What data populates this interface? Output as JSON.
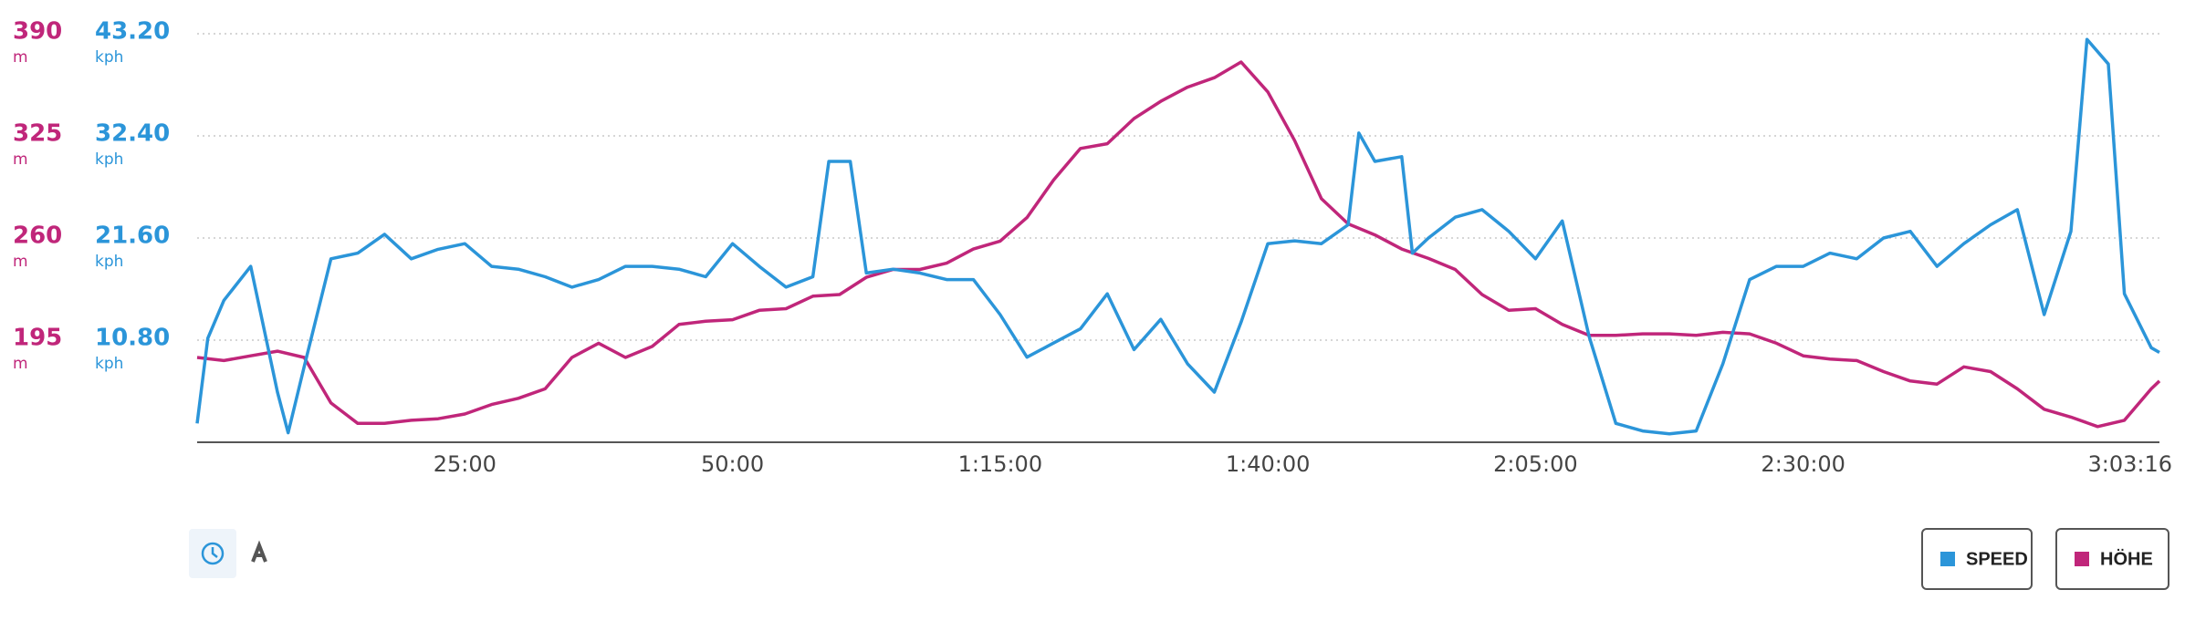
{
  "chart_data": {
    "type": "line",
    "xlim": [
      0,
      183.27
    ],
    "xticks": [
      {
        "value": 25,
        "label": "25:00"
      },
      {
        "value": 50,
        "label": "50:00"
      },
      {
        "value": 75,
        "label": "1:15:00"
      },
      {
        "value": 100,
        "label": "1:40:00"
      },
      {
        "value": 125,
        "label": "2:05:00"
      },
      {
        "value": 150,
        "label": "2:30:00"
      },
      {
        "value": 183.27,
        "label": "3:03:16"
      }
    ],
    "ylim": [
      130,
      390
    ],
    "yticks": [
      195,
      260,
      325,
      390
    ],
    "yunit": "m",
    "y2lim": [
      0,
      43.2
    ],
    "y2ticks": [
      {
        "value": 10.8,
        "label": "10.80"
      },
      {
        "value": 21.6,
        "label": "21.60"
      },
      {
        "value": 32.4,
        "label": "32.40"
      },
      {
        "value": 43.2,
        "label": "43.20"
      }
    ],
    "y2unit": "kph",
    "grid": true,
    "series": [
      {
        "name": "SPEED",
        "color": "#2b95d9",
        "axis": "y2",
        "x": [
          0,
          1,
          2.5,
          5,
          7.5,
          8.5,
          10,
          12.5,
          15,
          17.5,
          20,
          22.5,
          25,
          27.5,
          30,
          32.5,
          35,
          37.5,
          40,
          42.5,
          45,
          47.5,
          50,
          52.5,
          55,
          57.5,
          59,
          61,
          62.5,
          65,
          67.5,
          70,
          72.5,
          75,
          77.5,
          80,
          82.5,
          85,
          87.5,
          90,
          92.5,
          95,
          97.5,
          100,
          102.5,
          105,
          107.5,
          108.5,
          110,
          112.5,
          113.5,
          115,
          117.5,
          120,
          122.5,
          125,
          127.5,
          130,
          132.5,
          135,
          137.5,
          140,
          142.5,
          145,
          147.5,
          150,
          152.5,
          155,
          157.5,
          160,
          162.5,
          165,
          167.5,
          170,
          172.5,
          175,
          176.5,
          178.5,
          180,
          182.5,
          183.27
        ],
        "values": [
          2,
          11,
          15,
          18.6,
          5.3,
          1,
          8,
          19.4,
          20,
          22,
          19.4,
          20.4,
          21,
          18.6,
          18.3,
          17.5,
          16.4,
          17.2,
          18.6,
          18.6,
          18.3,
          17.5,
          21,
          18.6,
          16.4,
          17.5,
          29.7,
          29.7,
          17.9,
          18.3,
          17.9,
          17.2,
          17.2,
          13.5,
          9,
          10.5,
          12,
          15.7,
          9.8,
          13,
          8.3,
          5.3,
          12.7,
          21,
          21.3,
          21,
          23,
          32.7,
          29.7,
          30.2,
          20,
          21.6,
          23.8,
          24.6,
          22.3,
          19.4,
          23.4,
          11.2,
          2,
          1.2,
          0.9,
          1.2,
          8.3,
          17.2,
          18.6,
          18.6,
          20,
          19.4,
          21.6,
          22.3,
          18.6,
          21,
          23,
          24.6,
          13.5,
          22.3,
          42.6,
          40,
          15.7,
          10,
          9.5
        ]
      },
      {
        "name": "HÖHE",
        "color": "#c0267a",
        "x": [
          0,
          2.5,
          5,
          7.5,
          10,
          12.5,
          15,
          17.5,
          20,
          22.5,
          25,
          27.5,
          30,
          32.5,
          35,
          37.5,
          40,
          42.5,
          45,
          47.5,
          50,
          52.5,
          55,
          57.5,
          60,
          62.5,
          65,
          67.5,
          70,
          72.5,
          75,
          77.5,
          80,
          82.5,
          85,
          87.5,
          90,
          92.5,
          95,
          97.5,
          100,
          102.5,
          105,
          107.5,
          110,
          112.5,
          115,
          117.5,
          120,
          122.5,
          125,
          127.5,
          130,
          132.5,
          135,
          137.5,
          140,
          142.5,
          145,
          147.5,
          150,
          152.5,
          155,
          157.5,
          160,
          162.5,
          165,
          167.5,
          170,
          172.5,
          175,
          177.5,
          180,
          182.5,
          183.27
        ],
        "values": [
          184,
          182,
          185,
          188,
          184,
          155,
          142,
          142,
          144,
          145,
          148,
          154,
          158,
          164,
          184,
          193,
          184,
          191,
          205,
          207,
          208,
          214,
          215,
          223,
          224,
          235,
          240,
          240,
          244,
          253,
          258,
          273,
          297,
          317,
          320,
          336,
          347,
          356,
          362,
          372,
          353,
          322,
          285,
          269,
          262,
          253,
          247,
          240,
          224,
          214,
          215,
          205,
          198,
          198,
          199,
          199,
          198,
          200,
          199,
          193,
          185,
          183,
          182,
          175,
          169,
          167,
          178,
          175,
          164,
          151,
          146,
          140,
          144,
          164,
          169
        ]
      }
    ]
  }
}
